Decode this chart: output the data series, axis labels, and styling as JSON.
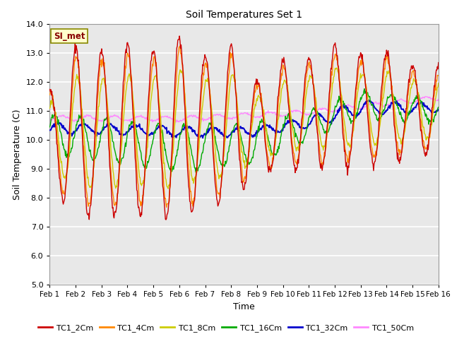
{
  "title": "Soil Temperatures Set 1",
  "xlabel": "Time",
  "ylabel": "Soil Temperature (C)",
  "ylim": [
    5.0,
    14.0
  ],
  "yticks": [
    5.0,
    6.0,
    7.0,
    8.0,
    9.0,
    10.0,
    11.0,
    12.0,
    13.0,
    14.0
  ],
  "xtick_labels": [
    "Feb 1",
    "Feb 2",
    "Feb 3",
    "Feb 4",
    "Feb 5",
    "Feb 6",
    "Feb 7",
    "Feb 8",
    "Feb 9",
    "Feb 10",
    "Feb 11",
    "Feb 12",
    "Feb 13",
    "Feb 14",
    "Feb 15",
    "Feb 16"
  ],
  "series_colors": {
    "TC1_2Cm": "#cc0000",
    "TC1_4Cm": "#ff8800",
    "TC1_8Cm": "#cccc00",
    "TC1_16Cm": "#00aa00",
    "TC1_32Cm": "#0000cc",
    "TC1_50Cm": "#ff88ff"
  },
  "legend_label": "SI_met",
  "legend_box_facecolor": "#ffffcc",
  "legend_box_edgecolor": "#888800",
  "fig_facecolor": "#ffffff",
  "ax_facecolor": "#e8e8e8",
  "grid_color": "#ffffff",
  "stripe_colors": [
    "#d8d8d8",
    "#e8e8e8"
  ]
}
